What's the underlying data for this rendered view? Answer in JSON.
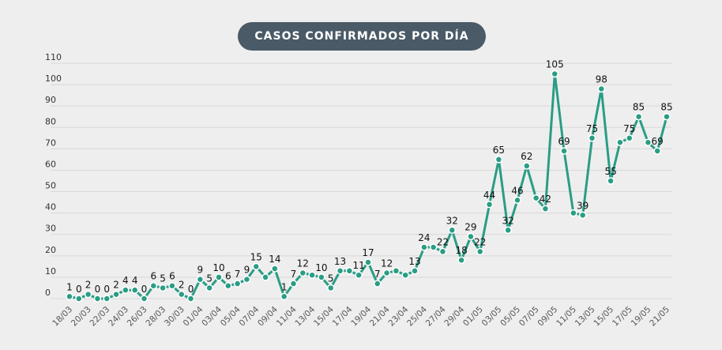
{
  "chart_data": {
    "type": "line",
    "title": "CASOS CONFIRMADOS POR DÍA",
    "xlabel": "",
    "ylabel": "",
    "ylim": [
      0,
      110
    ],
    "yticks": [
      0,
      10,
      20,
      30,
      40,
      50,
      60,
      70,
      80,
      90,
      100,
      110
    ],
    "grid": true,
    "color": "#2a9d85",
    "x": [
      "18/03",
      "19/03",
      "20/03",
      "21/03",
      "22/03",
      "23/03",
      "24/03",
      "25/03",
      "26/03",
      "27/03",
      "28/03",
      "29/03",
      "30/03",
      "31/03",
      "01/04",
      "02/04",
      "03/04",
      "04/04",
      "05/04",
      "06/04",
      "07/04",
      "08/04",
      "09/04",
      "10/04",
      "11/04",
      "12/04",
      "13/04",
      "14/04",
      "15/04",
      "16/04",
      "17/04",
      "18/04",
      "19/04",
      "20/04",
      "21/04",
      "22/04",
      "23/04",
      "24/04",
      "25/04",
      "26/04",
      "27/04",
      "28/04",
      "29/04",
      "30/04",
      "01/05",
      "02/05",
      "03/05",
      "04/05",
      "05/05",
      "06/05",
      "07/05",
      "08/05",
      "09/05",
      "10/05",
      "11/05",
      "12/05",
      "13/05",
      "14/05",
      "15/05",
      "16/05",
      "17/05",
      "18/05",
      "19/05",
      "20/05",
      "21/05"
    ],
    "xtick_labels": [
      "18/03",
      "20/03",
      "22/03",
      "24/03",
      "26/03",
      "28/03",
      "30/03",
      "01/04",
      "03/04",
      "05/04",
      "07/04",
      "09/04",
      "11/04",
      "13/04",
      "15/04",
      "17/04",
      "19/04",
      "21/04",
      "23/04",
      "25/04",
      "27/04",
      "29/04",
      "01/05",
      "03/05",
      "05/05",
      "07/05",
      "09/05",
      "11/05",
      "13/05",
      "15/05",
      "17/05",
      "19/05",
      "21/05"
    ],
    "values": [
      1,
      0,
      2,
      0,
      0,
      2,
      4,
      4,
      0,
      6,
      5,
      6,
      2,
      0,
      9,
      5,
      10,
      6,
      7,
      9,
      15,
      10,
      14,
      1,
      7,
      12,
      11,
      10,
      5,
      13,
      13,
      11,
      17,
      7,
      12,
      13,
      11,
      13,
      24,
      24,
      22,
      32,
      18,
      29,
      22,
      44,
      65,
      32,
      46,
      62,
      47,
      42,
      105,
      69,
      40,
      39,
      75,
      98,
      55,
      73,
      75,
      85,
      73,
      69,
      85
    ],
    "labeled": [
      0,
      1,
      2,
      3,
      4,
      5,
      6,
      7,
      8,
      9,
      10,
      11,
      12,
      13,
      14,
      15,
      16,
      17,
      18,
      19,
      20,
      22,
      23,
      24,
      25,
      27,
      28,
      29,
      31,
      32,
      33,
      34,
      37,
      38,
      40,
      41,
      42,
      43,
      44,
      45,
      46,
      47,
      48,
      49,
      51,
      52,
      53,
      55,
      56,
      57,
      58,
      60,
      61,
      63,
      64
    ]
  }
}
